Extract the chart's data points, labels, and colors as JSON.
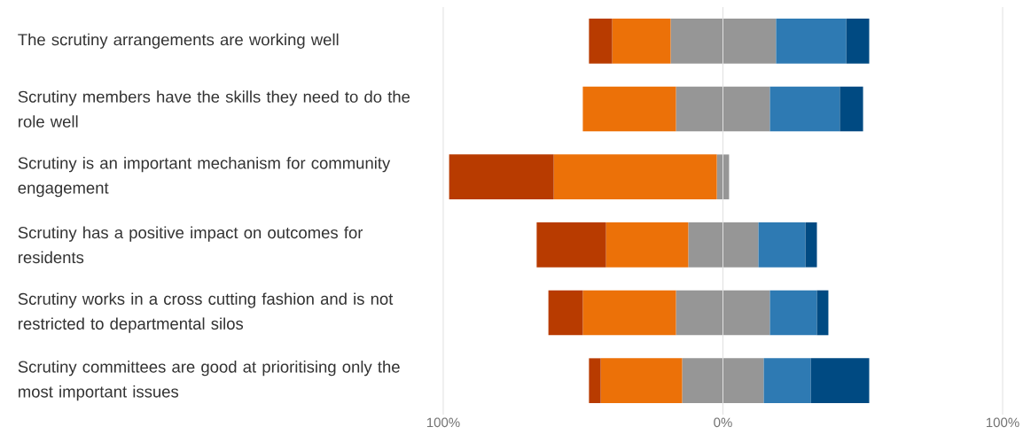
{
  "chart_data": {
    "type": "bar",
    "orientation": "horizontal",
    "stacked": true,
    "categories": [
      "The scrutiny arrangements are working well",
      "Scrutiny members have the skills they need to do the role well",
      "Scrutiny is an important mechanism for community engagement",
      "Scrutiny has a positive impact on outcomes for residents",
      "Scrutiny works in a cross cutting fashion and is not restricted to departmental silos",
      "Scrutiny committees are good at prioritising only the most important issues"
    ],
    "series": [
      {
        "color": "#969696",
        "values": [
          -18.7,
          -16.8,
          -2.2,
          -12.4,
          -16.8,
          -14.6
        ]
      },
      {
        "color": "#ec7108",
        "values": [
          -20.9,
          -33.3,
          -58.3,
          -29.4,
          -33.3,
          -29.1
        ]
      },
      {
        "color": "#b83b00",
        "values": [
          -8.3,
          0,
          -37.4,
          -24.8,
          -12.3,
          -4.2
        ]
      },
      {
        "color": "#969696",
        "values": [
          19.0,
          16.8,
          2.2,
          12.7,
          16.8,
          14.6
        ]
      },
      {
        "color": "#2e7ab3",
        "values": [
          25.1,
          25.0,
          0,
          16.8,
          16.8,
          16.8
        ]
      },
      {
        "color": "#004a82",
        "values": [
          8.2,
          8.3,
          0,
          4.1,
          4.1,
          20.9
        ]
      }
    ],
    "xlim": [
      -100,
      100
    ],
    "xticks": [
      {
        "value": -100,
        "label": "100%"
      },
      {
        "value": 0,
        "label": "0%"
      },
      {
        "value": 100,
        "label": "100%"
      }
    ],
    "grid": "x"
  }
}
